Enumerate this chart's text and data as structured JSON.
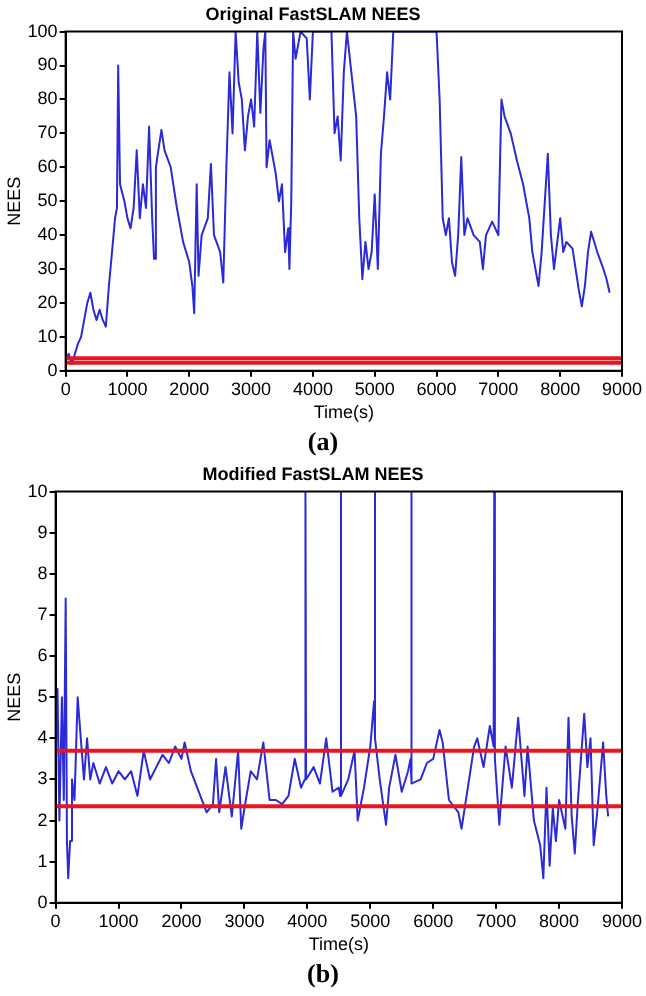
{
  "chart_data": [
    {
      "type": "line",
      "title": "Original FastSLAM NEES",
      "xlabel": "Time(s)",
      "ylabel": "NEES",
      "annotations": [
        "(a)"
      ],
      "xlim": [
        0,
        9000
      ],
      "xticks": [
        0,
        1000,
        2000,
        3000,
        4000,
        5000,
        6000,
        7000,
        8000,
        9000
      ],
      "ylim": [
        0,
        100
      ],
      "yticks": [
        0,
        10,
        20,
        30,
        40,
        50,
        60,
        70,
        80,
        90,
        100
      ],
      "grid": false,
      "legend": false,
      "marker": "none",
      "line_style": "solid",
      "ref_lines": [
        {
          "axis": "y",
          "value": 2.35,
          "color": "#e8141e"
        },
        {
          "axis": "y",
          "value": 3.7,
          "color": "#e8141e"
        }
      ],
      "series": [
        {
          "color": "#2a2ad6",
          "x": [
            0,
            50,
            100,
            150,
            200,
            250,
            300,
            350,
            400,
            450,
            500,
            550,
            600,
            650,
            700,
            750,
            800,
            830,
            850,
            880,
            950,
            1000,
            1050,
            1100,
            1150,
            1200,
            1250,
            1300,
            1350,
            1400,
            1430,
            1460,
            1500,
            1550,
            1600,
            1700,
            1800,
            1900,
            1950,
            2000,
            2050,
            2080,
            2120,
            2150,
            2200,
            2300,
            2350,
            2400,
            2500,
            2550,
            2600,
            2650,
            2700,
            2750,
            2800,
            2850,
            2900,
            2950,
            3000,
            3050,
            3100,
            3150,
            3200,
            3230,
            3250,
            3300,
            3400,
            3450,
            3500,
            3550,
            3600,
            3620,
            3650,
            3680,
            3720,
            3800,
            3900,
            3950,
            4000,
            4300,
            4350,
            4400,
            4450,
            4500,
            4550,
            4700,
            4750,
            4800,
            4850,
            4900,
            4950,
            5000,
            5050,
            5100,
            5150,
            5200,
            5250,
            5300,
            6000,
            6050,
            6100,
            6150,
            6200,
            6250,
            6300,
            6350,
            6400,
            6450,
            6500,
            6600,
            6700,
            6750,
            6800,
            6900,
            7000,
            7050,
            7100,
            7200,
            7300,
            7400,
            7500,
            7550,
            7650,
            7700,
            7800,
            7850,
            7900,
            8000,
            8050,
            8100,
            8200,
            8300,
            8350,
            8400,
            8450,
            8500,
            8600,
            8700,
            8750,
            8800
          ],
          "values": [
            3,
            5,
            2,
            5,
            8,
            10,
            15,
            20,
            23,
            18,
            15,
            18,
            15,
            13,
            25,
            35,
            45,
            48,
            90,
            55,
            50,
            45,
            42,
            48,
            65,
            45,
            55,
            48,
            72,
            45,
            33,
            60,
            65,
            71,
            65,
            60,
            48,
            38,
            35,
            32,
            25,
            17,
            55,
            28,
            40,
            45,
            61,
            40,
            35,
            26,
            60,
            88,
            70,
            100,
            85,
            80,
            65,
            75,
            80,
            72,
            100,
            76,
            95,
            100,
            60,
            68,
            58,
            50,
            55,
            35,
            42,
            30,
            50,
            100,
            92,
            100,
            98,
            80,
            100,
            100,
            70,
            75,
            62,
            88,
            100,
            75,
            45,
            27,
            38,
            30,
            35,
            52,
            30,
            64,
            75,
            88,
            80,
            100,
            100,
            80,
            45,
            40,
            45,
            32,
            28,
            40,
            63,
            40,
            45,
            40,
            38,
            30,
            40,
            44,
            40,
            80,
            75,
            70,
            62,
            55,
            45,
            35,
            25,
            35,
            64,
            40,
            30,
            45,
            35,
            38,
            36,
            24,
            19,
            25,
            35,
            41,
            35,
            30,
            27,
            23
          ]
        }
      ]
    },
    {
      "type": "line",
      "title": "Modified FastSLAM NEES",
      "xlabel": "Time(s)",
      "ylabel": "NEES",
      "annotations": [
        "(b)"
      ],
      "xlim": [
        0,
        9000
      ],
      "xticks": [
        0,
        1000,
        2000,
        3000,
        4000,
        5000,
        6000,
        7000,
        8000,
        9000
      ],
      "ylim": [
        0,
        10
      ],
      "yticks": [
        0,
        1,
        2,
        3,
        4,
        5,
        6,
        7,
        8,
        9,
        10
      ],
      "grid": false,
      "legend": false,
      "marker": "none",
      "line_style": "solid",
      "ref_lines": [
        {
          "axis": "y",
          "value": 2.35,
          "color": "#e8141e"
        },
        {
          "axis": "y",
          "value": 3.7,
          "color": "#e8141e"
        }
      ],
      "series": [
        {
          "color": "#2a2ad6",
          "x": [
            0,
            30,
            60,
            100,
            130,
            160,
            180,
            200,
            230,
            260,
            300,
            350,
            400,
            450,
            500,
            550,
            600,
            700,
            800,
            900,
            1000,
            1100,
            1200,
            1300,
            1400,
            1500,
            1600,
            1700,
            1800,
            1900,
            2000,
            2050,
            2150,
            2300,
            2400,
            2500,
            2550,
            2600,
            2700,
            2800,
            2900,
            2950,
            3000,
            3100,
            3200,
            3300,
            3400,
            3500,
            3600,
            3700,
            3800,
            3900,
            3960,
            3970,
            3980,
            4100,
            4200,
            4300,
            4400,
            4500,
            4520,
            4530,
            4540,
            4650,
            4750,
            4800,
            4900,
            5000,
            5060,
            5070,
            5080,
            5150,
            5250,
            5300,
            5400,
            5500,
            5600,
            5640,
            5650,
            5660,
            5800,
            5900,
            6000,
            6100,
            6150,
            6250,
            6400,
            6450,
            6550,
            6650,
            6700,
            6800,
            6900,
            6960,
            6970,
            6980,
            7050,
            7150,
            7250,
            7350,
            7450,
            7500,
            7550,
            7600,
            7700,
            7750,
            7800,
            7850,
            7900,
            7950,
            8000,
            8100,
            8150,
            8200,
            8250,
            8300,
            8400,
            8450,
            8500,
            8550,
            8600,
            8700,
            8750,
            8780
          ],
          "values": [
            3.5,
            5.2,
            2,
            5,
            2.5,
            7.4,
            1.5,
            0.6,
            1.5,
            3,
            2.5,
            5,
            4,
            3,
            4,
            3,
            3.4,
            2.9,
            3.3,
            2.9,
            3.2,
            3,
            3.2,
            2.6,
            3.7,
            3,
            3.3,
            3.6,
            3.4,
            3.8,
            3.5,
            3.9,
            3.2,
            2.6,
            2.2,
            2.4,
            3.5,
            2.2,
            3.3,
            2.1,
            3.7,
            1.8,
            2.3,
            3.2,
            3,
            3.9,
            2.5,
            2.5,
            2.4,
            2.6,
            3.5,
            2.8,
            3,
            10,
            3,
            3.3,
            2.9,
            4,
            2.7,
            2.8,
            2.6,
            10,
            2.6,
            3,
            3.7,
            2,
            2.8,
            3.8,
            4.9,
            10,
            4,
            3,
            1.9,
            2.8,
            3.6,
            2.7,
            3.2,
            3.5,
            10,
            2.9,
            3,
            3.4,
            3.5,
            4.2,
            3.9,
            2.5,
            2.2,
            1.8,
            2.8,
            3.8,
            4,
            3.3,
            4.3,
            3.8,
            10,
            3.5,
            1.9,
            3.8,
            2.8,
            4.5,
            2.6,
            3.8,
            2.9,
            2,
            1.4,
            0.6,
            2.8,
            0.9,
            2.3,
            1.5,
            2.5,
            1.8,
            4.5,
            2.1,
            1.2,
            2.5,
            4.6,
            3.3,
            4,
            1.4,
            2.1,
            3.9,
            2.6,
            2.1
          ]
        }
      ]
    }
  ]
}
